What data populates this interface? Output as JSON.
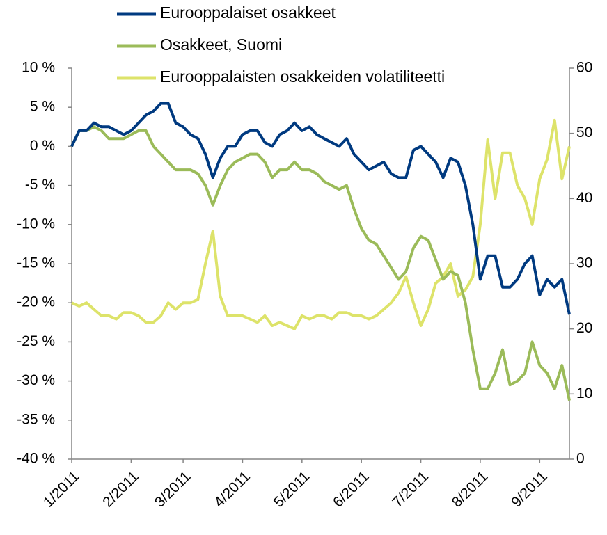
{
  "chart_data": {
    "type": "line",
    "categories": [
      "1/2011",
      null,
      null,
      null,
      null,
      null,
      null,
      null,
      "2/2011",
      null,
      null,
      null,
      null,
      null,
      null,
      "3/2011",
      null,
      null,
      null,
      null,
      null,
      null,
      null,
      "4/2011",
      null,
      null,
      null,
      null,
      null,
      null,
      null,
      "5/2011",
      null,
      null,
      null,
      null,
      null,
      null,
      null,
      "6/2011",
      null,
      null,
      null,
      null,
      null,
      null,
      null,
      "7/2011",
      null,
      null,
      null,
      null,
      null,
      null,
      null,
      "8/2011",
      null,
      null,
      null,
      null,
      null,
      null,
      null,
      "9/2011",
      null,
      null,
      null,
      null
    ],
    "series": [
      {
        "name": "Eurooppalaiset osakkeet",
        "color": "#003a80",
        "axis": "y",
        "values": [
          0,
          2,
          2,
          3,
          2.5,
          2.5,
          2,
          1.5,
          2,
          3,
          4,
          4.5,
          5.5,
          5.5,
          3,
          2.5,
          1.5,
          1,
          -1,
          -4,
          -1.5,
          0,
          0,
          1.5,
          2,
          2,
          0.5,
          0,
          1.5,
          2,
          3,
          2,
          2.5,
          1.5,
          1,
          0.5,
          0,
          1,
          -1,
          -2,
          -3,
          -2.5,
          -2,
          -3.5,
          -4,
          -4,
          -0.5,
          0,
          -1,
          -2,
          -4,
          -1.5,
          -2,
          -5,
          -10,
          -17,
          -14,
          -14,
          -18,
          -18,
          -17,
          -15,
          -14,
          -19,
          -17,
          -18,
          -17,
          -21.5
        ]
      },
      {
        "name": "Osakkeet, Suomi",
        "color": "#9bbb59",
        "axis": "y",
        "values": [
          0,
          2,
          2,
          2.5,
          2,
          1,
          1,
          1,
          1.5,
          2,
          2,
          0,
          -1,
          -2,
          -3,
          -3,
          -3,
          -3.5,
          -5,
          -7.5,
          -5,
          -3,
          -2,
          -1.5,
          -1,
          -1,
          -2,
          -4,
          -3,
          -3,
          -2,
          -3,
          -3,
          -3.5,
          -4.5,
          -5,
          -5.5,
          -5,
          -8,
          -10.5,
          -12,
          -12.5,
          -14,
          -15.5,
          -17,
          -16,
          -13,
          -11.5,
          -12,
          -14.5,
          -17,
          -16,
          -16.5,
          -20,
          -26,
          -31,
          -31,
          -29,
          -26,
          -30.5,
          -30,
          -29,
          -25,
          -28,
          -29,
          -31,
          -28,
          -32.5
        ]
      },
      {
        "name": "Eurooppalaisten osakkeiden volatiliteetti",
        "color": "#dde36a",
        "axis": "y2",
        "values": [
          24,
          23.5,
          24,
          23,
          22,
          22,
          21.5,
          22.5,
          22.5,
          22,
          21,
          21,
          22,
          24,
          23,
          24,
          24,
          24.5,
          30,
          35,
          25,
          22,
          22,
          22,
          21.5,
          21,
          22,
          20.5,
          21,
          20.5,
          20,
          22,
          21.5,
          22,
          22,
          21.5,
          22.5,
          22.5,
          22,
          22,
          21.5,
          22,
          23,
          24,
          25.5,
          28,
          24,
          20.5,
          23,
          27,
          28,
          30,
          25,
          26,
          28,
          36,
          49,
          40,
          47,
          47,
          42,
          40,
          36,
          43,
          46,
          52,
          43,
          48
        ]
      }
    ],
    "ylim": [
      -40,
      10
    ],
    "yticks": [
      {
        "value": -40,
        "label": "-40 %"
      },
      {
        "value": -35,
        "label": "-35 %"
      },
      {
        "value": -30,
        "label": "-30 %"
      },
      {
        "value": -25,
        "label": "-25 %"
      },
      {
        "value": -20,
        "label": "-20 %"
      },
      {
        "value": -15,
        "label": "-15 %"
      },
      {
        "value": -10,
        "label": "-10 %"
      },
      {
        "value": -5,
        "label": "-5 %"
      },
      {
        "value": 0,
        "label": "0 %"
      },
      {
        "value": 5,
        "label": "5 %"
      },
      {
        "value": 10,
        "label": "10 %"
      }
    ],
    "y2lim": [
      0,
      60
    ],
    "y2ticks": [
      0,
      10,
      20,
      30,
      40,
      50,
      60
    ],
    "grid": false,
    "legend": "top"
  }
}
